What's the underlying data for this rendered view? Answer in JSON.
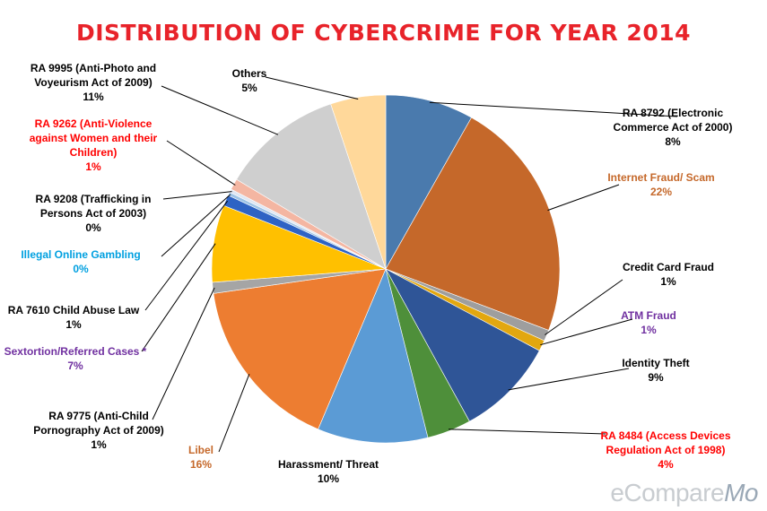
{
  "chart_data": {
    "type": "pie",
    "title": "DISTRIBUTION OF CYBERCRIME FOR YEAR 2014",
    "slices": [
      {
        "label": "RA 8792 (Electronic Commerce Act of 2000)",
        "value": 8,
        "pct_label": "8%",
        "color": "#4a7aad"
      },
      {
        "label": "Internet Fraud/ Scam",
        "value": 22,
        "pct_label": "22%",
        "color": "#c5682a"
      },
      {
        "label": "Credit Card Fraud",
        "value": 1,
        "pct_label": "1%",
        "color": "#9e9e9e"
      },
      {
        "label": "ATM Fraud",
        "value": 1,
        "pct_label": "1%",
        "color": "#e2a710"
      },
      {
        "label": "Identity Theft",
        "value": 9,
        "pct_label": "9%",
        "color": "#2f5597"
      },
      {
        "label": "RA 8484 (Access Devices Regulation Act of 1998)",
        "value": 4,
        "pct_label": "4%",
        "color": "#4e8f3a"
      },
      {
        "label": "Harassment/ Threat",
        "value": 10,
        "pct_label": "10%",
        "color": "#5b9bd5"
      },
      {
        "label": "Libel",
        "value": 16,
        "pct_label": "16%",
        "color": "#ed7d31"
      },
      {
        "label": "RA 9775 (Anti-Child Pornography Act of 2009)",
        "value": 1,
        "pct_label": "1%",
        "color": "#a5a5a5"
      },
      {
        "label": "Sextortion/Referred Cases *",
        "value": 7,
        "pct_label": "7%",
        "color": "#ffc000"
      },
      {
        "label": "RA 7610 Child Abuse Law",
        "value": 1,
        "pct_label": "1%",
        "color": "#2e63c4"
      },
      {
        "label": "Illegal Online Gambling",
        "value": 0.3,
        "pct_label": "0%",
        "color": "#9dc3e6"
      },
      {
        "label": "RA 9208 (Trafficking in Persons Act of 2003)",
        "value": 0.3,
        "pct_label": "0%",
        "color": "#dfe7f3"
      },
      {
        "label": "RA 9262 (Anti-Violence against Women and their Children)",
        "value": 1,
        "pct_label": "1%",
        "color": "#f4b6a2"
      },
      {
        "label": "RA 9995 (Anti-Photo and Voyeurism Act of 2009)",
        "value": 11,
        "pct_label": "11%",
        "color": "#cfcfcf"
      },
      {
        "label": "Others",
        "value": 5,
        "pct_label": "5%",
        "color": "#ffd89a"
      }
    ],
    "label_colors": {
      "RA 8792 (Electronic Commerce Act of 2000)": "#000000",
      "Internet Fraud/ Scam": "#c5682a",
      "Credit Card Fraud": "#000000",
      "ATM Fraud": "#7030a0",
      "Identity Theft": "#000000",
      "RA 8484 (Access Devices Regulation Act of 1998)": "#ff0000",
      "Harassment/ Threat": "#000000",
      "Libel": "#c5682a",
      "RA 9775 (Anti-Child Pornography Act of 2009)": "#000000",
      "Sextortion/Referred Cases *": "#7030a0",
      "RA 7610 Child Abuse Law": "#000000",
      "Illegal Online Gambling": "#00a0e0",
      "RA 9208 (Trafficking in Persons Act of 2003)": "#000000",
      "RA 9262 (Anti-Violence against Women and their Children)": "#ff0000",
      "RA 9995 (Anti-Photo and Voyeurism Act of 2009)": "#000000",
      "Others": "#000000"
    }
  },
  "watermark": {
    "part1": "eCompare",
    "part2": "Mo"
  }
}
